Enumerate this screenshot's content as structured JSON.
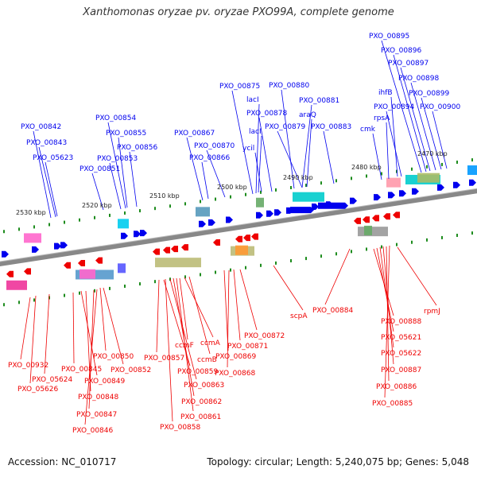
{
  "title": "Xanthomonas oryzae pv. oryzae PXO99A, complete genome",
  "accession": "Accession: NC_010717",
  "topology": "Topology: circular; Length: 5,240,075 bp; Genes: 5,048",
  "colors": {
    "forward": "#0000ee",
    "reverse": "#ee0000",
    "backbone": "#888888",
    "tick": "#1e8c1e"
  },
  "kbp_labels": [
    "2530 kbp",
    "2520 kbp",
    "2510 kbp",
    "2500 kbp",
    "2490 kbp",
    "2480 kbp",
    "2470 kbp"
  ],
  "forward_genes": [
    "PXO_00842",
    "PXO_00843",
    "PXO_05623",
    "PXO_00851",
    "PXO_00854",
    "PXO_00855",
    "PXO_00853",
    "PXO_00856",
    "PXO_00867",
    "PXO_00866",
    "PXO_00870",
    "PXO_00875",
    "lacI",
    "PXO_00878",
    "lacI",
    "ycil",
    "PXO_00880",
    "PXO_00881",
    "araQ",
    "PXO_00879",
    "PXO_00883",
    "cmk",
    "rpsA",
    "ihfB",
    "PXO_00894",
    "PXO_00895",
    "PXO_00896",
    "PXO_00897",
    "PXO_00898",
    "PXO_00899",
    "PXO_00900"
  ],
  "reverse_genes": [
    "PXO_00932",
    "PXO_05626",
    "PXO_05624",
    "PXO_00845",
    "PXO_00849",
    "PXO_00848",
    "PXO_00847",
    "PXO_00846",
    "PXO_00850",
    "PXO_00852",
    "PXO_00857",
    "ccmF",
    "PXO_00859",
    "ccmA",
    "ccmB",
    "PXO_00863",
    "PXO_00862",
    "PXO_00861",
    "PXO_00858",
    "PXO_00869",
    "PXO_00871",
    "PXO_00872",
    "PXO_00868",
    "scpA",
    "PXO_00884",
    "rpmJ",
    "PXO_00888",
    "PXO_05621",
    "PXO_05622",
    "PXO_00887",
    "PXO_00886",
    "PXO_00885"
  ]
}
